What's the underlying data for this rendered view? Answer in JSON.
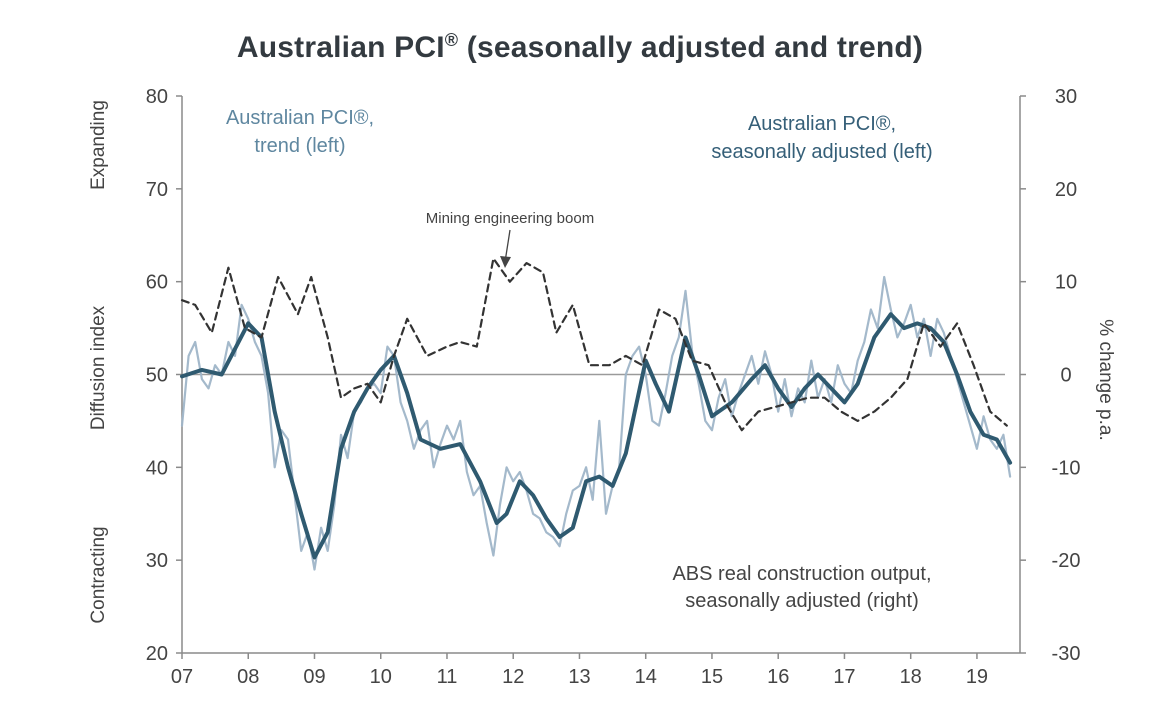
{
  "title": "Australian PCI",
  "title_mark": "®",
  "chart_data": {
    "type": "line",
    "title": "Australian PCI® (seasonally adjusted and trend)",
    "x_ticks": [
      "07",
      "08",
      "09",
      "10",
      "11",
      "12",
      "13",
      "14",
      "15",
      "16",
      "17",
      "18",
      "19"
    ],
    "x_range": [
      2007.0,
      2019.65
    ],
    "left_axis": {
      "label": "Diffusion index",
      "ylim": [
        20,
        80
      ],
      "ticks": [
        "20",
        "30",
        "40",
        "50",
        "60",
        "70",
        "80"
      ]
    },
    "right_axis": {
      "label": "% change p.a.",
      "ylim": [
        -30,
        30
      ],
      "ticks": [
        "-30",
        "-20",
        "-10",
        "0",
        "10",
        "20",
        "30"
      ]
    },
    "reference_line": {
      "axis": "left",
      "value": 50
    },
    "side_labels": {
      "top": "Expanding",
      "bottom": "Contracting"
    },
    "annotations": {
      "trend_line1": "Australian PCI®,",
      "trend_line2": "trend (left)",
      "sa_line1": "Australian PCI®,",
      "sa_line2": "seasonally adjusted (left)",
      "abs_line1": "ABS real construction output,",
      "abs_line2": "seasonally adjusted (right)",
      "boom": "Mining engineering boom"
    },
    "series": [
      {
        "name": "Australian PCI®, trend (left)",
        "axis": "left",
        "color": "#2f5a70",
        "x": [
          2007.0,
          2007.3,
          2007.6,
          2008.0,
          2008.2,
          2008.4,
          2008.6,
          2008.8,
          2009.0,
          2009.2,
          2009.4,
          2009.6,
          2009.8,
          2010.0,
          2010.2,
          2010.4,
          2010.6,
          2010.9,
          2011.2,
          2011.5,
          2011.75,
          2011.9,
          2012.1,
          2012.3,
          2012.5,
          2012.7,
          2012.9,
          2013.1,
          2013.3,
          2013.5,
          2013.7,
          2014.0,
          2014.15,
          2014.35,
          2014.6,
          2014.8,
          2015.0,
          2015.3,
          2015.6,
          2015.8,
          2016.0,
          2016.2,
          2016.4,
          2016.6,
          2016.8,
          2017.0,
          2017.2,
          2017.45,
          2017.7,
          2017.9,
          2018.1,
          2018.3,
          2018.5,
          2018.7,
          2018.9,
          2019.1,
          2019.3,
          2019.5
        ],
        "values": [
          49.8,
          50.5,
          50.0,
          55.5,
          54.0,
          46.0,
          40.0,
          35.0,
          30.3,
          33.0,
          42.0,
          46.0,
          48.5,
          50.5,
          52.0,
          48.0,
          43.0,
          42.0,
          42.5,
          38.5,
          34.0,
          35.0,
          38.5,
          37.0,
          34.5,
          32.5,
          33.5,
          38.5,
          39.0,
          38.0,
          41.5,
          51.5,
          49.0,
          46.0,
          54.0,
          50.0,
          45.5,
          47.0,
          49.5,
          51.0,
          48.5,
          46.5,
          48.5,
          50.0,
          48.5,
          47.0,
          49.0,
          54.0,
          56.5,
          55.0,
          55.5,
          55.0,
          53.5,
          50.0,
          46.0,
          43.5,
          43.0,
          40.5
        ]
      },
      {
        "name": "Australian PCI®, seasonally adjusted (left)",
        "axis": "left",
        "color": "#9fb5c8",
        "x": [
          2007.0,
          2007.1,
          2007.2,
          2007.3,
          2007.4,
          2007.5,
          2007.6,
          2007.7,
          2007.8,
          2007.9,
          2008.0,
          2008.1,
          2008.2,
          2008.3,
          2008.4,
          2008.5,
          2008.6,
          2008.7,
          2008.8,
          2008.9,
          2009.0,
          2009.1,
          2009.2,
          2009.3,
          2009.4,
          2009.5,
          2009.6,
          2009.7,
          2009.8,
          2009.9,
          2010.0,
          2010.1,
          2010.2,
          2010.3,
          2010.4,
          2010.5,
          2010.6,
          2010.7,
          2010.8,
          2010.9,
          2011.0,
          2011.1,
          2011.2,
          2011.3,
          2011.4,
          2011.5,
          2011.6,
          2011.7,
          2011.8,
          2011.9,
          2012.0,
          2012.1,
          2012.2,
          2012.3,
          2012.4,
          2012.5,
          2012.6,
          2012.7,
          2012.8,
          2012.9,
          2013.0,
          2013.1,
          2013.2,
          2013.3,
          2013.4,
          2013.5,
          2013.6,
          2013.7,
          2013.8,
          2013.9,
          2014.0,
          2014.1,
          2014.2,
          2014.3,
          2014.4,
          2014.5,
          2014.6,
          2014.7,
          2014.8,
          2014.9,
          2015.0,
          2015.1,
          2015.2,
          2015.3,
          2015.4,
          2015.5,
          2015.6,
          2015.7,
          2015.8,
          2015.9,
          2016.0,
          2016.1,
          2016.2,
          2016.3,
          2016.4,
          2016.5,
          2016.6,
          2016.7,
          2016.8,
          2016.9,
          2017.0,
          2017.1,
          2017.2,
          2017.3,
          2017.4,
          2017.5,
          2017.6,
          2017.7,
          2017.8,
          2017.9,
          2018.0,
          2018.1,
          2018.2,
          2018.3,
          2018.4,
          2018.5,
          2018.6,
          2018.7,
          2018.8,
          2018.9,
          2019.0,
          2019.1,
          2019.2,
          2019.3,
          2019.4,
          2019.5
        ],
        "values": [
          44.5,
          52.0,
          53.5,
          49.5,
          48.5,
          51.0,
          50.0,
          53.5,
          52.0,
          57.5,
          56.0,
          53.5,
          52.0,
          48.0,
          40.0,
          44.0,
          43.0,
          37.0,
          31.0,
          33.0,
          29.0,
          33.5,
          31.0,
          36.0,
          43.5,
          41.0,
          46.0,
          47.0,
          48.5,
          49.0,
          48.0,
          53.0,
          52.0,
          47.0,
          45.0,
          42.0,
          44.0,
          45.0,
          40.0,
          42.5,
          44.5,
          43.0,
          45.0,
          39.5,
          37.0,
          38.0,
          34.0,
          30.5,
          36.0,
          40.0,
          38.5,
          39.5,
          37.5,
          35.0,
          34.5,
          33.0,
          32.5,
          31.5,
          35.0,
          37.5,
          38.0,
          40.0,
          36.5,
          45.0,
          35.0,
          38.0,
          40.0,
          50.0,
          52.0,
          53.0,
          50.0,
          45.0,
          44.5,
          48.0,
          52.0,
          54.0,
          59.0,
          52.5,
          49.0,
          45.0,
          44.0,
          47.5,
          49.5,
          45.5,
          48.0,
          50.0,
          52.0,
          49.0,
          52.5,
          50.0,
          46.0,
          49.5,
          45.5,
          48.5,
          47.0,
          51.5,
          47.5,
          49.5,
          47.0,
          51.0,
          49.0,
          48.0,
          51.5,
          53.5,
          57.0,
          55.0,
          60.5,
          57.0,
          54.0,
          55.5,
          57.5,
          54.0,
          56.0,
          52.0,
          56.0,
          54.5,
          52.0,
          49.5,
          47.0,
          44.5,
          42.0,
          45.5,
          43.0,
          42.0,
          43.5,
          39.0
        ]
      },
      {
        "name": "ABS real construction output, seasonally adjusted (right)",
        "axis": "right",
        "color": "#333333",
        "x": [
          2007.0,
          2007.2,
          2007.45,
          2007.7,
          2007.95,
          2008.2,
          2008.45,
          2008.75,
          2008.95,
          2009.2,
          2009.4,
          2009.6,
          2009.8,
          2010.0,
          2010.2,
          2010.4,
          2010.7,
          2011.0,
          2011.2,
          2011.45,
          2011.7,
          2011.95,
          2012.2,
          2012.45,
          2012.65,
          2012.9,
          2013.15,
          2013.45,
          2013.7,
          2013.95,
          2014.2,
          2014.45,
          2014.7,
          2014.95,
          2015.2,
          2015.45,
          2015.7,
          2015.95,
          2016.2,
          2016.45,
          2016.7,
          2016.95,
          2017.2,
          2017.45,
          2017.7,
          2017.95,
          2018.2,
          2018.45,
          2018.7,
          2018.95,
          2019.2,
          2019.45
        ],
        "values": [
          8.0,
          7.5,
          4.5,
          11.5,
          5.0,
          4.0,
          10.5,
          6.5,
          10.5,
          4.0,
          -2.5,
          -1.5,
          -1.0,
          -3.0,
          2.0,
          6.0,
          2.0,
          3.0,
          3.5,
          3.0,
          12.5,
          10.0,
          12.0,
          11.0,
          4.5,
          7.5,
          1.0,
          1.0,
          2.0,
          1.0,
          7.0,
          6.0,
          1.5,
          1.0,
          -3.0,
          -6.0,
          -4.0,
          -3.5,
          -3.0,
          -2.5,
          -2.5,
          -4.0,
          -5.0,
          -4.0,
          -2.5,
          -0.5,
          5.5,
          3.0,
          5.5,
          1.0,
          -4.0,
          -5.5
        ]
      }
    ]
  }
}
